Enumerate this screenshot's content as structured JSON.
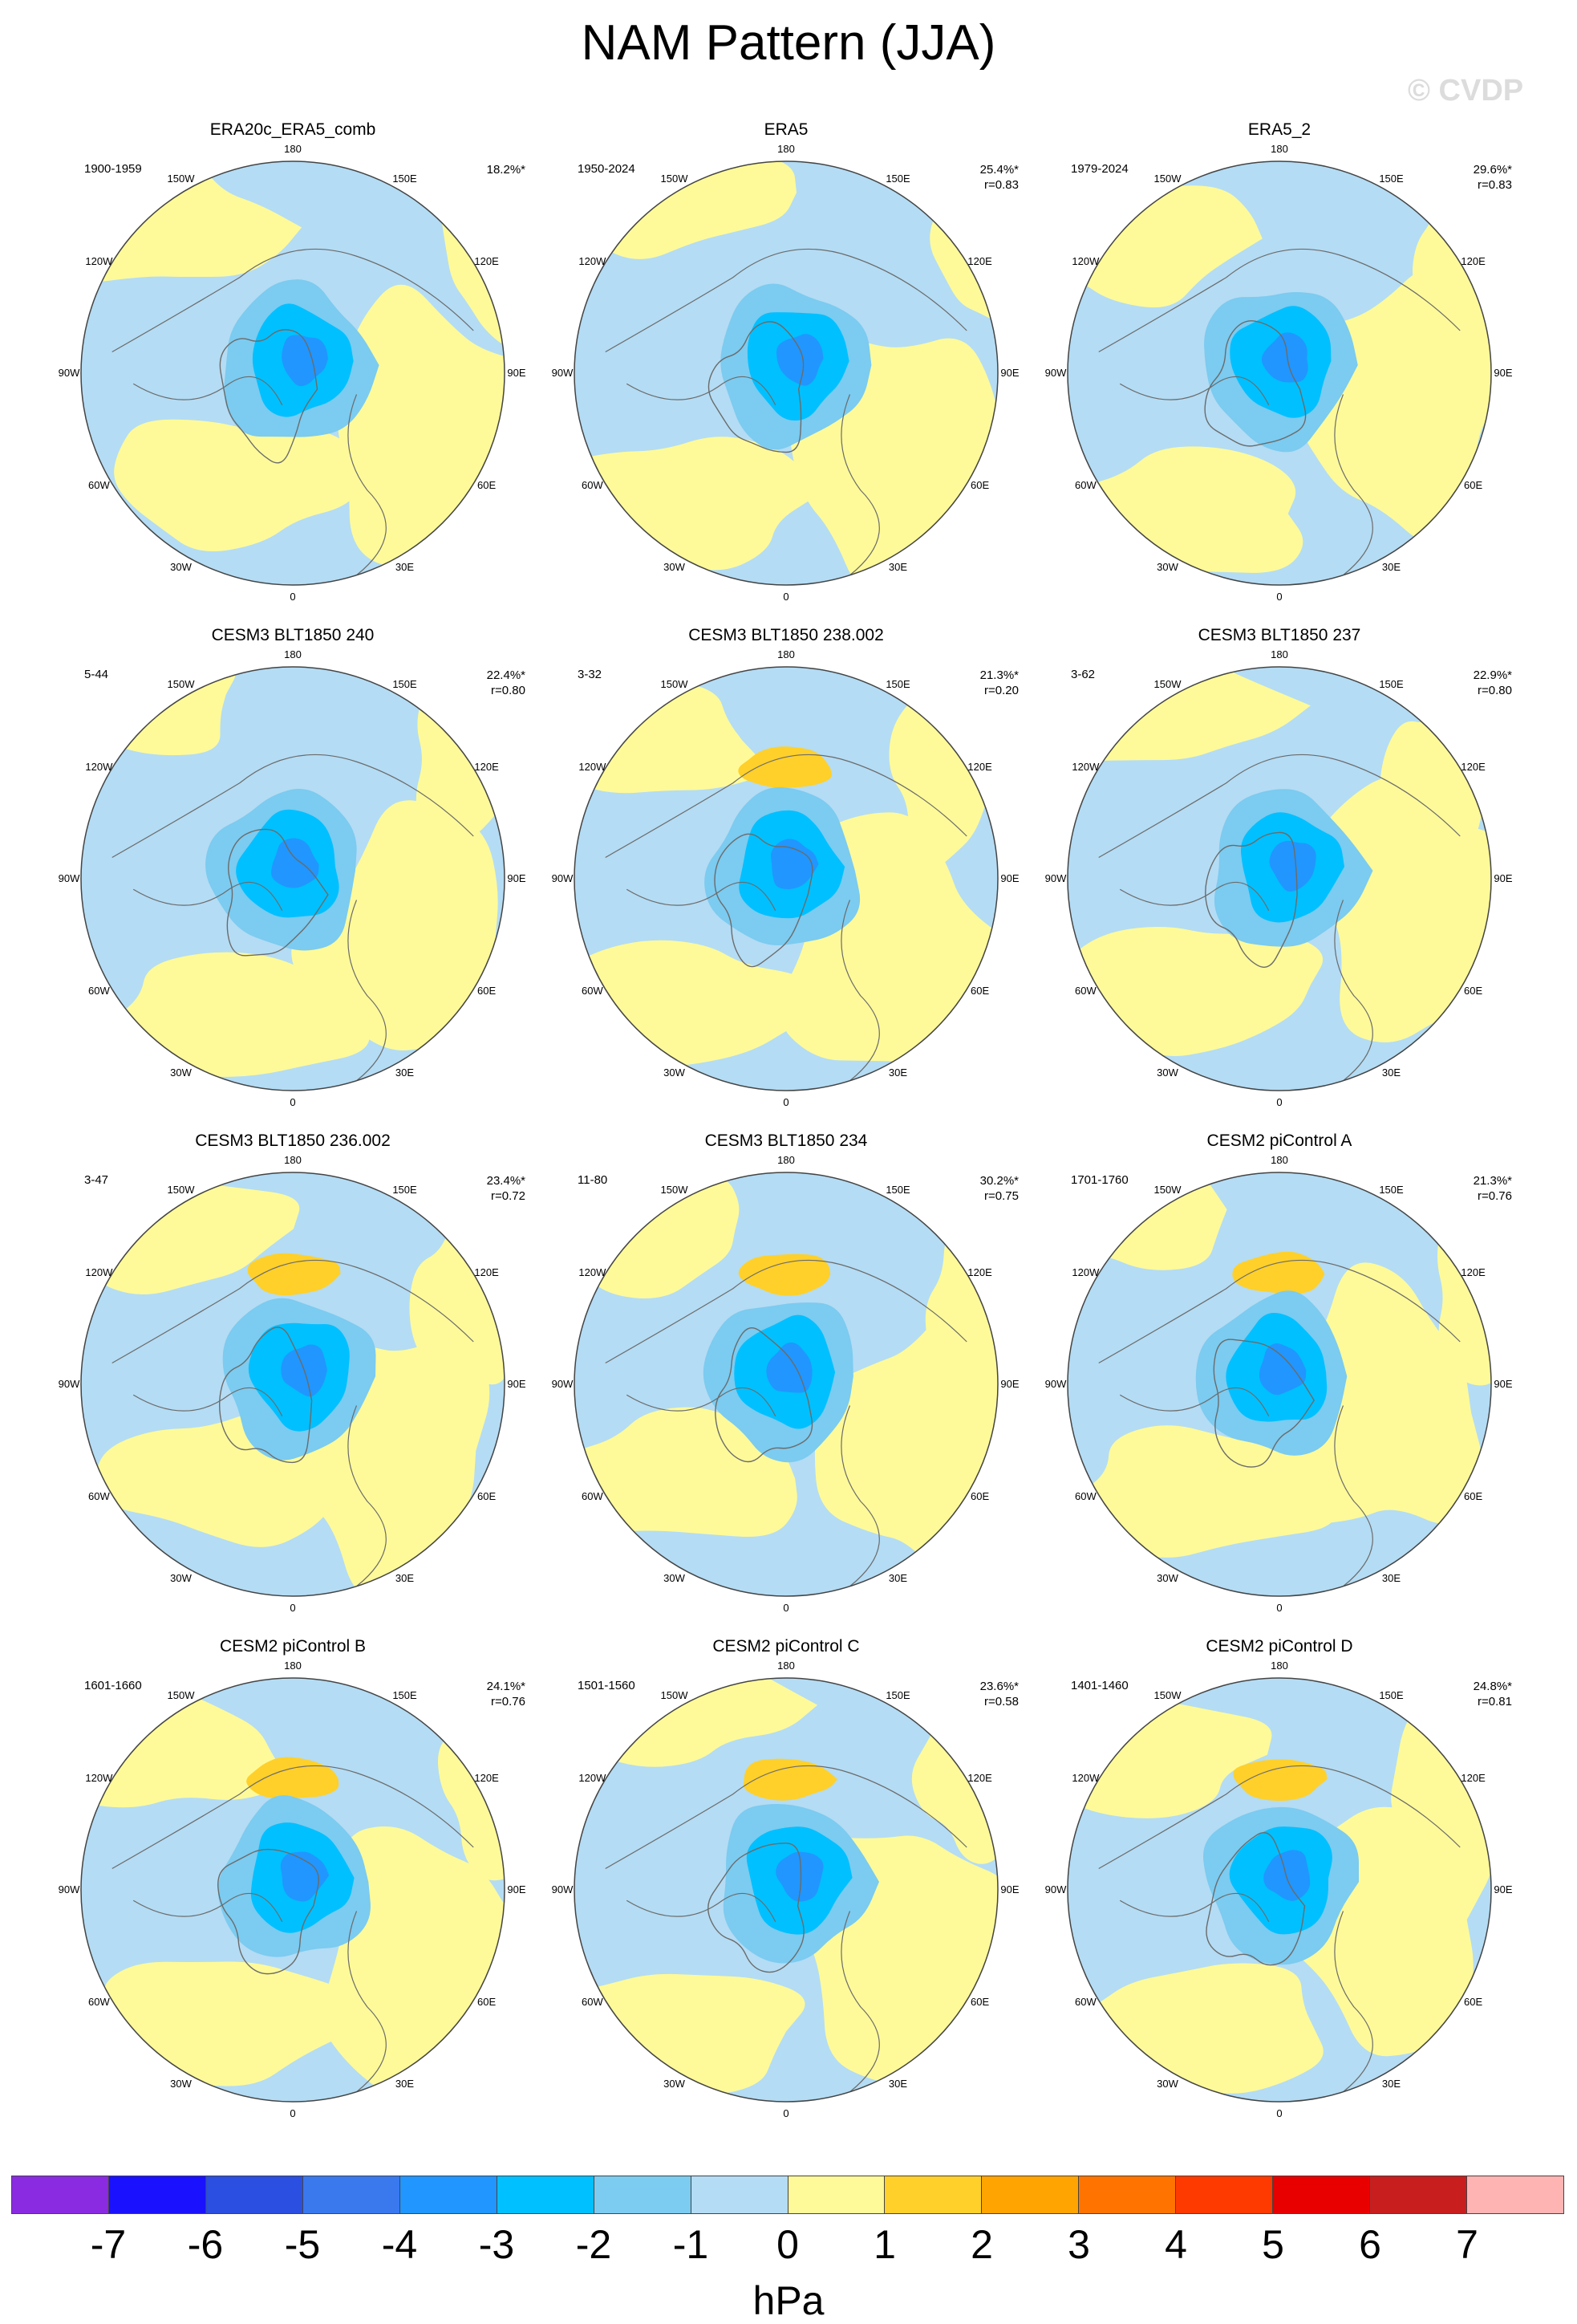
{
  "title": "NAM Pattern (JJA)",
  "watermark": "© CVDP",
  "colors": {
    "ocean_neg1": "#b4dcf4",
    "pos1": "#fffa99",
    "coast": "#6b6b6b"
  },
  "lon_labels": [
    "180",
    "150E",
    "120E",
    "90E",
    "60E",
    "30E",
    "0",
    "30W",
    "60W",
    "90W",
    "120W",
    "150W"
  ],
  "panels": [
    {
      "title": "ERA20c_ERA5_comb",
      "period": "1900-1959",
      "pct": "18.2%*",
      "r": ""
    },
    {
      "title": "ERA5",
      "period": "1950-2024",
      "pct": "25.4%*",
      "r": "r=0.83"
    },
    {
      "title": "ERA5_2",
      "period": "1979-2024",
      "pct": "29.6%*",
      "r": "r=0.83"
    },
    {
      "title": "CESM3 BLT1850 240",
      "period": "5-44",
      "pct": "22.4%*",
      "r": "r=0.80"
    },
    {
      "title": "CESM3 BLT1850 238.002",
      "period": "3-32",
      "pct": "21.3%*",
      "r": "r=0.20"
    },
    {
      "title": "CESM3 BLT1850 237",
      "period": "3-62",
      "pct": "22.9%*",
      "r": "r=0.80"
    },
    {
      "title": "CESM3 BLT1850 236.002",
      "period": "3-47",
      "pct": "23.4%*",
      "r": "r=0.72"
    },
    {
      "title": "CESM3 BLT1850 234",
      "period": "11-80",
      "pct": "30.2%*",
      "r": "r=0.75"
    },
    {
      "title": "CESM2 piControl A",
      "period": "1701-1760",
      "pct": "21.3%*",
      "r": "r=0.76"
    },
    {
      "title": "CESM2 piControl B",
      "period": "1601-1660",
      "pct": "24.1%*",
      "r": "r=0.76"
    },
    {
      "title": "CESM2 piControl C",
      "period": "1501-1560",
      "pct": "23.6%*",
      "r": "r=0.58"
    },
    {
      "title": "CESM2 piControl D",
      "period": "1401-1460",
      "pct": "24.8%*",
      "r": "r=0.81"
    }
  ],
  "colorbar": {
    "colors": [
      "#8a2be2",
      "#1a12ff",
      "#2b4fe0",
      "#3a78ee",
      "#2196ff",
      "#00c0ff",
      "#7ccbf0",
      "#b4dcf4",
      "#fffa99",
      "#ffd02a",
      "#ffa400",
      "#ff7400",
      "#ff3a00",
      "#e80000",
      "#c81e1e",
      "#ffb4b4"
    ],
    "ticks": [
      "-7",
      "-6",
      "-5",
      "-4",
      "-3",
      "-2",
      "-1",
      "0",
      "1",
      "2",
      "3",
      "4",
      "5",
      "6",
      "7"
    ],
    "unit": "hPa"
  }
}
